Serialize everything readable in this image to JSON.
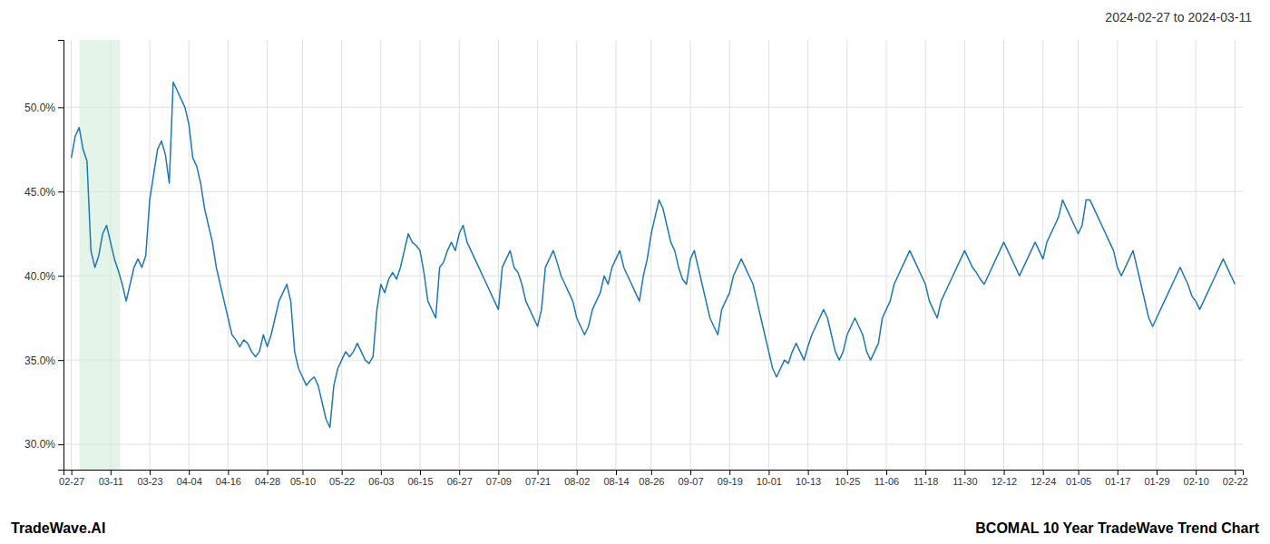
{
  "chart_data": {
    "type": "line",
    "title": "BCOMAL 10 Year TradeWave Trend Chart",
    "subtitle": "2024-02-27 to 2024-03-11",
    "annotations": [
      "TradeWave.AI"
    ],
    "color": "#1f77b4",
    "grid": true,
    "ylim": [
      28.5,
      54.0
    ],
    "yticks": [
      {
        "value": 30.0,
        "label": "30.0%"
      },
      {
        "value": 35.0,
        "label": "35.0%"
      },
      {
        "value": 40.0,
        "label": "40.0%"
      },
      {
        "value": 45.0,
        "label": "45.0%"
      },
      {
        "value": 50.0,
        "label": "50.0%"
      }
    ],
    "shade": {
      "x0": 2.079,
      "x1": 12.474,
      "color": "#d4edda"
    },
    "categories": [
      "02-27",
      null,
      null,
      null,
      null,
      null,
      null,
      null,
      null,
      null,
      "03-11",
      null,
      null,
      null,
      null,
      null,
      null,
      null,
      null,
      null,
      "03-23",
      null,
      null,
      null,
      null,
      null,
      null,
      null,
      null,
      null,
      "04-04",
      null,
      null,
      null,
      null,
      null,
      null,
      null,
      null,
      null,
      "04-16",
      null,
      null,
      null,
      null,
      null,
      null,
      null,
      null,
      null,
      "04-28",
      null,
      null,
      null,
      null,
      null,
      null,
      null,
      null,
      "05-10",
      null,
      null,
      null,
      null,
      null,
      null,
      null,
      null,
      null,
      "05-22",
      null,
      null,
      null,
      null,
      null,
      null,
      null,
      null,
      null,
      "06-03",
      null,
      null,
      null,
      null,
      null,
      null,
      null,
      null,
      null,
      "06-15",
      null,
      null,
      null,
      null,
      null,
      null,
      null,
      null,
      null,
      "06-27",
      null,
      null,
      null,
      null,
      null,
      null,
      null,
      null,
      null,
      "07-09",
      null,
      null,
      null,
      null,
      null,
      null,
      null,
      null,
      null,
      "07-21",
      null,
      null,
      null,
      null,
      null,
      null,
      null,
      null,
      null,
      "08-02",
      null,
      null,
      null,
      null,
      null,
      null,
      null,
      null,
      null,
      "08-14",
      null,
      null,
      null,
      null,
      null,
      null,
      null,
      null,
      "08-26",
      null,
      null,
      null,
      null,
      null,
      null,
      null,
      null,
      null,
      "09-07",
      null,
      null,
      null,
      null,
      null,
      null,
      null,
      null,
      null,
      "09-19",
      null,
      null,
      null,
      null,
      null,
      null,
      null,
      null,
      null,
      "10-01",
      null,
      null,
      null,
      null,
      null,
      null,
      null,
      null,
      null,
      "10-13",
      null,
      null,
      null,
      null,
      null,
      null,
      null,
      null,
      null,
      "10-25",
      null,
      null,
      null,
      null,
      null,
      null,
      null,
      null,
      null,
      "11-06",
      null,
      null,
      null,
      null,
      null,
      null,
      null,
      null,
      null,
      "11-18",
      null,
      null,
      null,
      null,
      null,
      null,
      null,
      null,
      null,
      "11-30",
      null,
      null,
      null,
      null,
      null,
      null,
      null,
      null,
      null,
      "12-12",
      null,
      null,
      null,
      null,
      null,
      null,
      null,
      null,
      null,
      "12-24",
      null,
      null,
      null,
      null,
      null,
      null,
      null,
      null,
      "01-05",
      null,
      null,
      null,
      null,
      null,
      null,
      null,
      null,
      null,
      "01-17",
      null,
      null,
      null,
      null,
      null,
      null,
      null,
      null,
      null,
      "01-29",
      null,
      null,
      null,
      null,
      null,
      null,
      null,
      null,
      null,
      "02-10",
      null,
      null,
      null,
      null,
      null,
      null,
      null,
      null,
      null,
      "02-22"
    ],
    "values": [
      47.0,
      48.3,
      48.8,
      47.5,
      46.8,
      41.5,
      40.5,
      41.2,
      42.5,
      43.0,
      42.0,
      41.0,
      40.3,
      39.5,
      38.5,
      39.5,
      40.5,
      41.0,
      40.5,
      41.2,
      44.5,
      46.0,
      47.5,
      48.0,
      47.2,
      45.5,
      51.5,
      51.0,
      50.5,
      50.0,
      49.0,
      47.0,
      46.5,
      45.5,
      44.0,
      43.0,
      42.0,
      40.5,
      39.5,
      38.5,
      37.5,
      36.5,
      36.2,
      35.8,
      36.2,
      36.0,
      35.5,
      35.2,
      35.5,
      36.5,
      35.8,
      36.5,
      37.5,
      38.5,
      39.0,
      39.5,
      38.5,
      35.5,
      34.5,
      34.0,
      33.5,
      33.8,
      34.0,
      33.5,
      32.5,
      31.5,
      31.0,
      33.5,
      34.5,
      35.0,
      35.5,
      35.2,
      35.5,
      36.0,
      35.5,
      35.0,
      34.8,
      35.2,
      38.0,
      39.5,
      39.0,
      39.8,
      40.2,
      39.8,
      40.5,
      41.5,
      42.5,
      42.0,
      41.8,
      41.5,
      40.2,
      38.5,
      38.0,
      37.5,
      40.5,
      40.8,
      41.5,
      42.0,
      41.5,
      42.5,
      43.0,
      42.0,
      41.5,
      41.0,
      40.5,
      40.0,
      39.5,
      39.0,
      38.5,
      38.0,
      40.5,
      41.0,
      41.5,
      40.5,
      40.2,
      39.5,
      38.5,
      38.0,
      37.5,
      37.0,
      38.0,
      40.5,
      41.0,
      41.5,
      40.8,
      40.0,
      39.5,
      39.0,
      38.5,
      37.5,
      37.0,
      36.5,
      37.0,
      38.0,
      38.5,
      39.0,
      40.0,
      39.5,
      40.5,
      41.0,
      41.5,
      40.5,
      40.0,
      39.5,
      39.0,
      38.5,
      40.0,
      41.0,
      42.5,
      43.5,
      44.5,
      44.0,
      43.0,
      42.0,
      41.5,
      40.5,
      39.8,
      39.5,
      41.0,
      41.5,
      40.5,
      39.5,
      38.5,
      37.5,
      37.0,
      36.5,
      38.0,
      38.5,
      39.0,
      40.0,
      40.5,
      41.0,
      40.5,
      40.0,
      39.5,
      38.5,
      37.5,
      36.5,
      35.5,
      34.5,
      34.0,
      34.5,
      35.0,
      34.8,
      35.5,
      36.0,
      35.5,
      35.0,
      35.8,
      36.5,
      37.0,
      37.5,
      38.0,
      37.5,
      36.5,
      35.5,
      35.0,
      35.5,
      36.5,
      37.0,
      37.5,
      37.0,
      36.5,
      35.5,
      35.0,
      35.5,
      36.0,
      37.5,
      38.0,
      38.5,
      39.5,
      40.0,
      40.5,
      41.0,
      41.5,
      41.0,
      40.5,
      40.0,
      39.5,
      38.5,
      38.0,
      37.5,
      38.5,
      39.0,
      39.5,
      40.0,
      40.5,
      41.0,
      41.5,
      41.0,
      40.5,
      40.2,
      39.8,
      39.5,
      40.0,
      40.5,
      41.0,
      41.5,
      42.0,
      41.5,
      41.0,
      40.5,
      40.0,
      40.5,
      41.0,
      41.5,
      42.0,
      41.5,
      41.0,
      42.0,
      42.5,
      43.0,
      43.5,
      44.5,
      44.0,
      43.5,
      43.0,
      42.5,
      43.0,
      44.5,
      44.5,
      44.0,
      43.5,
      43.0,
      42.5,
      42.0,
      41.5,
      40.5,
      40.0,
      40.5,
      41.0,
      41.5,
      40.5,
      39.5,
      38.5,
      37.5,
      37.0,
      37.5,
      38.0,
      38.5,
      39.0,
      39.5,
      40.0,
      40.5,
      40.0,
      39.5,
      38.8,
      38.5,
      38.0,
      38.5,
      39.0,
      39.5,
      40.0,
      40.5,
      41.0,
      40.5,
      40.0,
      39.5
    ]
  }
}
